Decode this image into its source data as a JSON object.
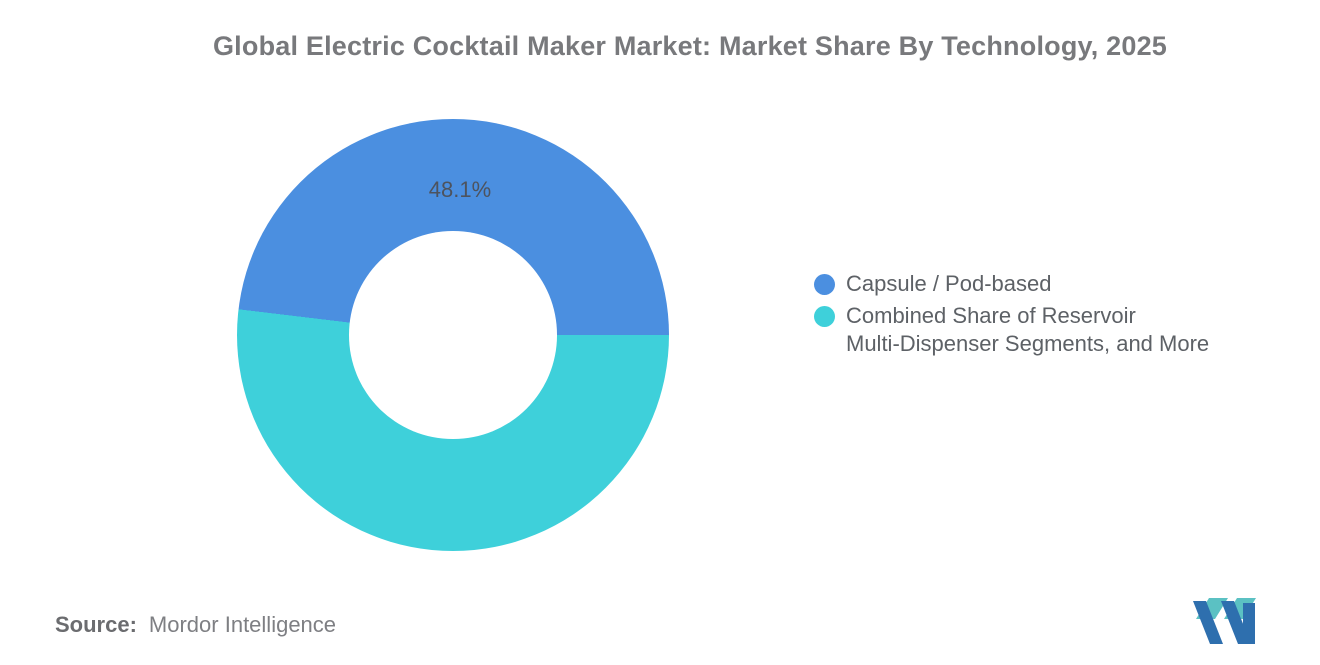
{
  "header": {
    "title": "Global Electric Cocktail Maker Market: Market Share By Technology, 2025"
  },
  "chart_data": {
    "type": "pie",
    "subtype": "donut",
    "title": "Global Electric Cocktail Maker Market: Market Share By Technology, 2025",
    "unit": "%",
    "slices": [
      {
        "label": "Capsule / Pod-based",
        "value": 48.1,
        "color": "#4B8FE0",
        "data_label": "48.1%"
      },
      {
        "label": "Combined Share of Reservoir Multi-Dispenser Segments, and More",
        "value": 51.9,
        "color": "#3ED0DA",
        "data_label": ""
      }
    ],
    "hole_ratio": 0.48,
    "start_conic_deg": 276.84,
    "legend_position": "right-middle",
    "data_label_color": "#4D535E",
    "background": "#ffffff"
  },
  "legend": {
    "items": [
      {
        "color": "#4B8FE0",
        "lines": [
          "Capsule / Pod-based",
          ""
        ]
      },
      {
        "color": "#3ED0DA",
        "lines": [
          "Combined Share of Reservoir",
          "Multi-Dispenser Segments, and More"
        ]
      }
    ]
  },
  "footer": {
    "source_label": "Source:",
    "source_value": "Mordor Intelligence"
  },
  "branding": {
    "logo_name": "mordor-intelligence-logo",
    "logo_teal": "#5BC1C3",
    "logo_blue": "#2E6FAE"
  }
}
